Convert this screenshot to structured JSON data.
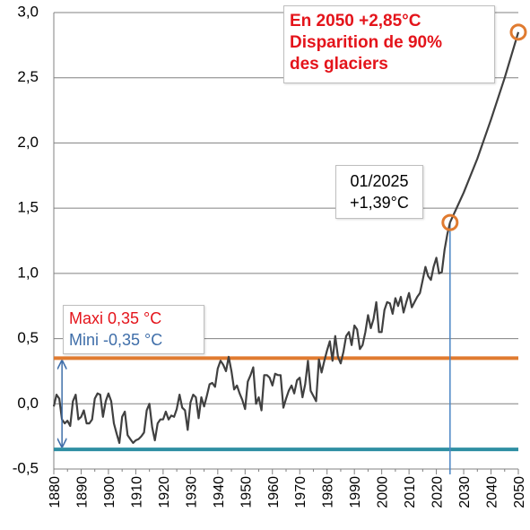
{
  "chart_data": {
    "type": "line",
    "ylim": [
      -0.5,
      3.0
    ],
    "xlim": [
      1880,
      2050
    ],
    "y_ticks": [
      "3,0",
      "2,5",
      "2,0",
      "1,5",
      "1,0",
      "0,5",
      "0,0",
      "-0,5"
    ],
    "y_tick_values": [
      3.0,
      2.5,
      2.0,
      1.5,
      1.0,
      0.5,
      0.0,
      -0.5
    ],
    "x_ticks": [
      "1880",
      "1890",
      "1900",
      "1910",
      "1920",
      "1930",
      "1940",
      "1950",
      "1960",
      "1970",
      "1980",
      "1990",
      "2000",
      "2010",
      "2020",
      "2030",
      "2040",
      "2050"
    ],
    "x_tick_values": [
      1880,
      1890,
      1900,
      1910,
      1920,
      1930,
      1940,
      1950,
      1960,
      1970,
      1980,
      1990,
      2000,
      2010,
      2020,
      2030,
      2040,
      2050
    ],
    "grid": true,
    "series": [
      {
        "color": "#404040",
        "x": [
          1880,
          1881,
          1882,
          1883,
          1884,
          1885,
          1886,
          1887,
          1888,
          1889,
          1890,
          1891,
          1892,
          1893,
          1894,
          1895,
          1896,
          1897,
          1898,
          1899,
          1900,
          1901,
          1902,
          1903,
          1904,
          1905,
          1906,
          1907,
          1908,
          1909,
          1910,
          1911,
          1912,
          1913,
          1914,
          1915,
          1916,
          1917,
          1918,
          1919,
          1920,
          1921,
          1922,
          1923,
          1924,
          1925,
          1926,
          1927,
          1928,
          1929,
          1930,
          1931,
          1932,
          1933,
          1934,
          1935,
          1936,
          1937,
          1938,
          1939,
          1940,
          1941,
          1942,
          1943,
          1944,
          1945,
          1946,
          1947,
          1948,
          1949,
          1950,
          1951,
          1952,
          1953,
          1954,
          1955,
          1956,
          1957,
          1958,
          1959,
          1960,
          1961,
          1962,
          1963,
          1964,
          1965,
          1966,
          1967,
          1968,
          1969,
          1970,
          1971,
          1972,
          1973,
          1974,
          1975,
          1976,
          1977,
          1978,
          1979,
          1980,
          1981,
          1982,
          1983,
          1984,
          1985,
          1986,
          1987,
          1988,
          1989,
          1990,
          1991,
          1992,
          1993,
          1994,
          1995,
          1996,
          1997,
          1998,
          1999,
          2000,
          2001,
          2002,
          2003,
          2004,
          2005,
          2006,
          2007,
          2008,
          2009,
          2010,
          2011,
          2012,
          2013,
          2014,
          2015,
          2016,
          2017,
          2018,
          2019,
          2020,
          2021,
          2022,
          2023,
          2024,
          2025
        ],
        "values": [
          -0.02,
          0.07,
          0.04,
          -0.12,
          -0.15,
          -0.13,
          -0.17,
          0.02,
          0.07,
          -0.12,
          -0.1,
          -0.05,
          -0.15,
          -0.15,
          -0.12,
          0.04,
          0.08,
          0.07,
          -0.1,
          0.02,
          0.08,
          0.02,
          -0.15,
          -0.23,
          -0.3,
          -0.1,
          -0.06,
          -0.24,
          -0.27,
          -0.3,
          -0.28,
          -0.27,
          -0.25,
          -0.22,
          -0.05,
          -0.0,
          -0.18,
          -0.28,
          -0.15,
          -0.12,
          -0.12,
          -0.06,
          -0.12,
          -0.09,
          -0.1,
          -0.04,
          0.07,
          -0.03,
          -0.05,
          -0.2,
          0.01,
          0.07,
          0.05,
          -0.11,
          0.05,
          -0.02,
          0.06,
          0.15,
          0.16,
          0.13,
          0.27,
          0.33,
          0.3,
          0.25,
          0.36,
          0.25,
          0.11,
          0.14,
          0.08,
          0.03,
          -0.04,
          0.17,
          0.22,
          0.28,
          0.0,
          0.05,
          -0.05,
          0.22,
          0.22,
          0.2,
          0.14,
          0.23,
          0.22,
          0.22,
          -0.03,
          0.04,
          0.1,
          0.14,
          0.08,
          0.18,
          0.2,
          0.05,
          0.15,
          0.33,
          0.1,
          0.06,
          0.02,
          0.34,
          0.24,
          0.33,
          0.41,
          0.48,
          0.33,
          0.52,
          0.36,
          0.31,
          0.4,
          0.52,
          0.55,
          0.45,
          0.6,
          0.57,
          0.42,
          0.45,
          0.55,
          0.68,
          0.58,
          0.65,
          0.78,
          0.55,
          0.55,
          0.72,
          0.78,
          0.77,
          0.69,
          0.81,
          0.75,
          0.82,
          0.7,
          0.78,
          0.85,
          0.74,
          0.78,
          0.82,
          0.85,
          0.95,
          1.05,
          0.98,
          0.95,
          1.05,
          1.12,
          1.0,
          1.01,
          1.18,
          1.3,
          1.39
        ]
      },
      {
        "color": "#404040",
        "x": [
          2025,
          2030,
          2035,
          2040,
          2045,
          2050
        ],
        "values": [
          1.39,
          1.62,
          1.88,
          2.18,
          2.5,
          2.85
        ]
      }
    ],
    "reference_lines": [
      {
        "label": "Maxi 0,35 °C",
        "value": 0.35,
        "color": "#e07b30"
      },
      {
        "label": "Mini -0,35 °C",
        "value": -0.35,
        "color": "#2e8fa3"
      }
    ],
    "markers": [
      {
        "x": 2025,
        "y": 1.39,
        "color": "#e07b30"
      },
      {
        "x": 2050,
        "y": 2.85,
        "color": "#e07b30"
      }
    ],
    "vertical_marker": {
      "x": 2025,
      "color": "#4a86c5"
    },
    "annotations": {
      "box_2050": [
        "En 2050 +2,85°C",
        "Disparition de 90%",
        "des glaciers"
      ],
      "box_2025": [
        "01/2025",
        "+1,39°C"
      ],
      "limits": [
        "Maxi 0,35 °C",
        "Mini -0,35 °C"
      ]
    },
    "colors": {
      "text_red": "#e4141b",
      "text_blue": "#3f6ea9",
      "grid": "#808080",
      "axis": "#808080"
    }
  }
}
